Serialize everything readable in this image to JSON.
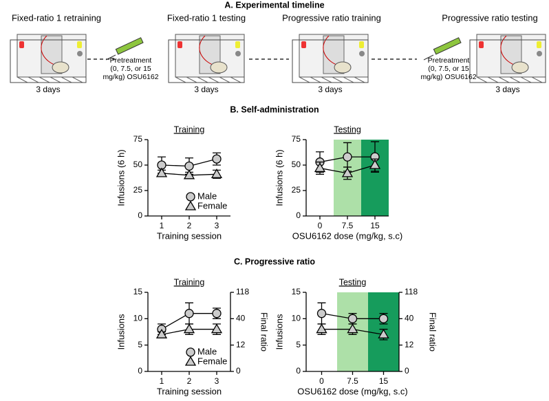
{
  "panels": [
    "A. Experimental timeline",
    "B. Self-administration",
    "C. Progressive ratio"
  ],
  "timeline": {
    "stages": [
      {
        "label": "Fixed-ratio 1 retraining",
        "days": "3 days",
        "color": "#000000"
      },
      {
        "label": "Fixed-ratio 1 testing",
        "days": "3 days",
        "color": "#c0141c"
      },
      {
        "label": "Progressive ratio training",
        "days": "3 days",
        "color": "#000000"
      },
      {
        "label": "Progressive ratio testing",
        "days": "3 days",
        "color": "#c0141c"
      }
    ],
    "pretreatments": [
      [
        "Pretreatment",
        "(0, 7.5, or 15",
        "mg/kg) OSU6162"
      ],
      [
        "Pretreatment",
        "(0, 7.5, or 15",
        "mg/kg) OSU6162"
      ]
    ]
  },
  "chart_data": [
    {
      "type": "line",
      "title": "Training",
      "xlabel": "Training session",
      "ylabel": "Infusions (6 h)",
      "categories": [
        "1",
        "2",
        "3"
      ],
      "ylim": [
        0,
        75
      ],
      "yticks": [
        0,
        25,
        50,
        75
      ],
      "legend": true,
      "series": [
        {
          "name": "Male",
          "marker": "circle",
          "color": "#cccccc",
          "values": [
            50,
            49,
            56
          ],
          "errors": [
            8,
            8,
            6
          ]
        },
        {
          "name": "Female",
          "marker": "triangle",
          "color": "#cccccc",
          "values": [
            42,
            40,
            41
          ],
          "errors": [
            3,
            3,
            4
          ]
        }
      ]
    },
    {
      "type": "line",
      "title": "Testing",
      "xlabel": "OSU6162 dose (mg/kg, s.c)",
      "ylabel": "Infusions (6 h)",
      "categories": [
        "0",
        "7.5",
        "15"
      ],
      "ylim": [
        0,
        75
      ],
      "yticks": [
        0,
        25,
        50,
        75
      ],
      "legend": false,
      "highlight_colors": [
        null,
        "#ade0a8",
        "#169c5c"
      ],
      "series": [
        {
          "name": "Male",
          "marker": "circle",
          "color": "#cccccc",
          "values": [
            53,
            58,
            58
          ],
          "errors": [
            10,
            14,
            15
          ]
        },
        {
          "name": "Female",
          "marker": "triangle",
          "color": "#cccccc",
          "values": [
            47,
            42,
            50
          ],
          "errors": [
            6,
            6,
            6
          ]
        }
      ]
    },
    {
      "type": "line",
      "title": "Training",
      "xlabel": "Training session",
      "ylabel": "Infusions",
      "y2label": "Final ratio",
      "categories": [
        "1",
        "2",
        "3"
      ],
      "ylim": [
        0,
        15
      ],
      "yticks": [
        0,
        5,
        10,
        15
      ],
      "y2ticks": [
        0,
        12,
        40,
        118
      ],
      "legend": true,
      "series": [
        {
          "name": "Male",
          "marker": "circle",
          "color": "#cccccc",
          "values": [
            8,
            11,
            11
          ],
          "errors": [
            1,
            2,
            1
          ]
        },
        {
          "name": "Female",
          "marker": "triangle",
          "color": "#cccccc",
          "values": [
            7,
            8,
            8
          ],
          "errors": [
            0.5,
            1,
            1
          ]
        }
      ]
    },
    {
      "type": "line",
      "title": "Testing",
      "xlabel": "OSU6162 dose (mg/kg, s.c)",
      "ylabel": "Infusions",
      "y2label": "Final ratio",
      "categories": [
        "0",
        "7.5",
        "15"
      ],
      "ylim": [
        0,
        15
      ],
      "yticks": [
        0,
        5,
        10,
        15
      ],
      "y2ticks": [
        0,
        12,
        40,
        118
      ],
      "legend": false,
      "highlight_colors": [
        null,
        "#ade0a8",
        "#169c5c"
      ],
      "series": [
        {
          "name": "Male",
          "marker": "circle",
          "color": "#cccccc",
          "values": [
            11,
            10,
            10
          ],
          "errors": [
            2,
            1,
            1
          ]
        },
        {
          "name": "Female",
          "marker": "triangle",
          "color": "#cccccc",
          "values": [
            8,
            8,
            7
          ],
          "errors": [
            1,
            1,
            1
          ]
        }
      ]
    }
  ]
}
